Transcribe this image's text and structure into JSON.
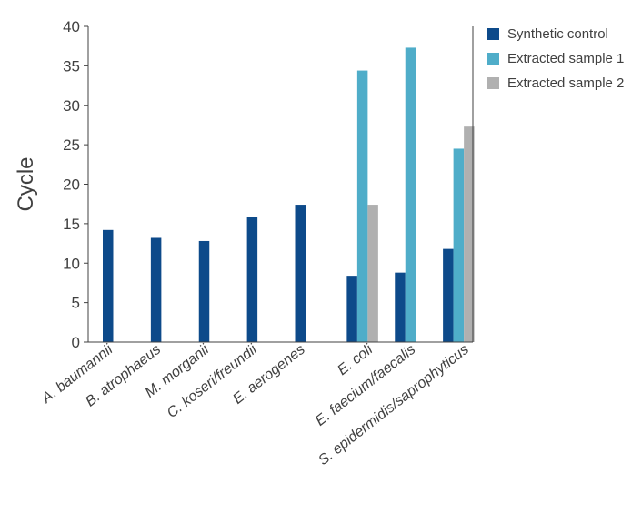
{
  "chart_data": {
    "type": "bar",
    "ylabel": "Cycle",
    "ylim": [
      0,
      40
    ],
    "yticks": [
      0,
      5,
      10,
      15,
      20,
      25,
      30,
      35,
      40
    ],
    "legend_position": "top-right",
    "categories": [
      "A. baumannii",
      "B. atrophaeus",
      "M. morganii",
      "C. koseri/freundii",
      "E. aerogenes",
      "E. coli",
      "E. faecium/faecalis",
      "S. epidermidis/saprophyticus"
    ],
    "series": [
      {
        "name": "Synthetic control",
        "color": "#0d4a8a",
        "values": [
          14.2,
          13.2,
          12.8,
          15.9,
          17.4,
          8.4,
          8.8,
          11.8
        ]
      },
      {
        "name": "Extracted sample 1",
        "color": "#4fadc9",
        "values": [
          null,
          null,
          null,
          null,
          null,
          34.4,
          37.3,
          24.5
        ]
      },
      {
        "name": "Extracted sample 2",
        "color": "#b0b0b0",
        "values": [
          null,
          null,
          null,
          null,
          null,
          17.4,
          null,
          27.3
        ]
      }
    ]
  }
}
